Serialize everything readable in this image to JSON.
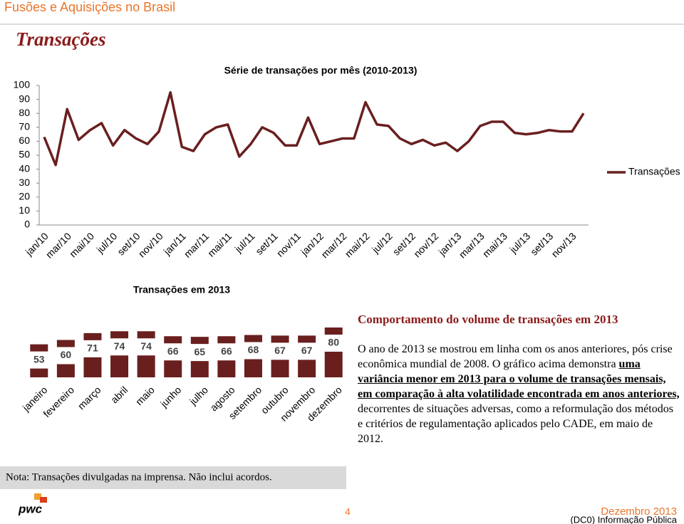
{
  "header": {
    "section": "Fusões e Aquisições no Brasil",
    "title": "Transações"
  },
  "chart_data": [
    {
      "type": "line",
      "title": "Série de transações por mês (2010-2013)",
      "categories": [
        "jan/10",
        null,
        "mar/10",
        null,
        "mai/10",
        null,
        "jul/10",
        null,
        "set/10",
        null,
        "nov/10",
        null,
        "jan/11",
        null,
        "mar/11",
        null,
        "mai/11",
        null,
        "jul/11",
        null,
        "set/11",
        null,
        "nov/11",
        null,
        "jan/12",
        null,
        "mar/12",
        null,
        "mai/12",
        null,
        "jul/12",
        null,
        "set/12",
        null,
        "nov/12",
        null,
        "jan/13",
        null,
        "mar/13",
        null,
        "mai/13",
        null,
        "jul/13",
        null,
        "set/13",
        null,
        "nov/13",
        null
      ],
      "series": [
        {
          "name": "Transações",
          "color": "#6a1f1f",
          "values": [
            63,
            43,
            83,
            61,
            68,
            73,
            57,
            68,
            62,
            58,
            67,
            95,
            56,
            53,
            65,
            70,
            72,
            49,
            58,
            70,
            66,
            57,
            57,
            77,
            58,
            60,
            62,
            62,
            88,
            72,
            71,
            62,
            58,
            61,
            57,
            59,
            53,
            60,
            71,
            74,
            74,
            66,
            65,
            66,
            68,
            67,
            67,
            80
          ]
        }
      ],
      "ylim": [
        0,
        100
      ],
      "yticks": [
        0,
        10,
        20,
        30,
        40,
        50,
        60,
        70,
        80,
        90,
        100
      ],
      "grid": false,
      "legend": "right"
    },
    {
      "type": "bar",
      "title": "Transações em 2013",
      "categories": [
        "janeiro",
        "fevereiro",
        "março",
        "abril",
        "maio",
        "junho",
        "julho",
        "agosto",
        "setembro",
        "outubro",
        "novembro",
        "dezembro"
      ],
      "values": [
        53,
        60,
        71,
        74,
        74,
        66,
        65,
        66,
        68,
        67,
        67,
        80
      ],
      "color": "#6a1f1f"
    }
  ],
  "text_box": {
    "title": "Comportamento do volume de transações em 2013",
    "paragraph": [
      "O ano de 2013 se mostrou em linha com os anos anteriores, pós crise econômica mundial de 2008. O gráfico acima demonstra ",
      "uma variância menor em 2013 para o volume de transações mensais, em comparação à alta volatilidade encontrada em anos anteriores,",
      " decorrentes de situações adversas, como a reformulação dos métodos e critérios de regulamentação aplicados pelo CADE, em maio de 2012."
    ]
  },
  "note": "Nota: Transações divulgadas na imprensa. Não inclui acordos.",
  "footer": {
    "logo": "pwc",
    "page": "4",
    "date": "Dezembro 2013",
    "classification": "(DC0) Informação Pública"
  }
}
